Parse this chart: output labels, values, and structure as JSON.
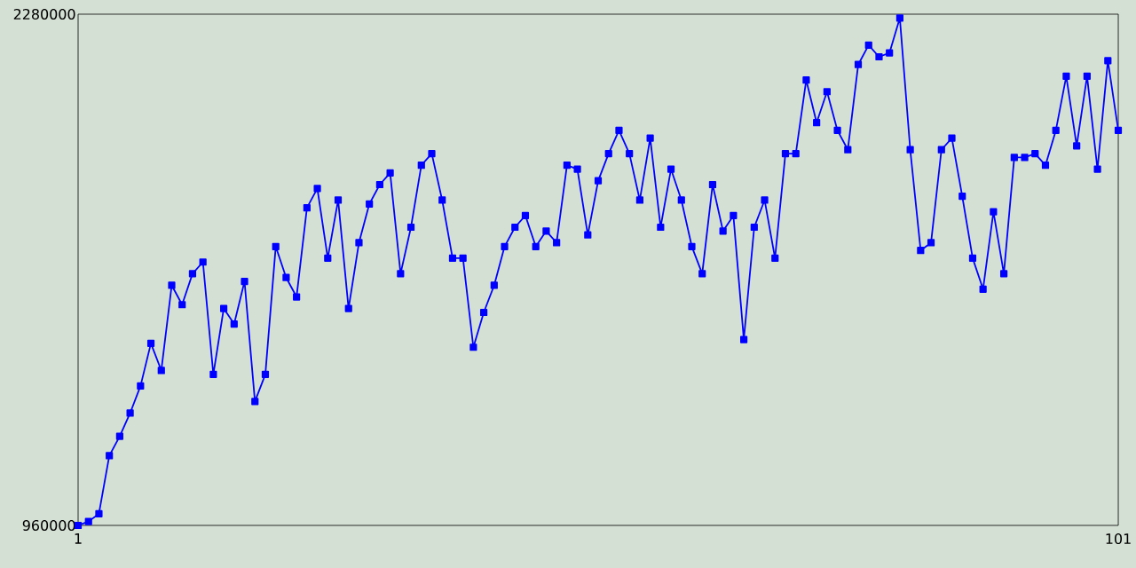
{
  "chart_data": {
    "type": "line",
    "x": [
      1,
      2,
      3,
      4,
      5,
      6,
      7,
      8,
      9,
      10,
      11,
      12,
      13,
      14,
      15,
      16,
      17,
      18,
      19,
      20,
      21,
      22,
      23,
      24,
      25,
      26,
      27,
      28,
      29,
      30,
      31,
      32,
      33,
      34,
      35,
      36,
      37,
      38,
      39,
      40,
      41,
      42,
      43,
      44,
      45,
      46,
      47,
      48,
      49,
      50,
      51,
      52,
      53,
      54,
      55,
      56,
      57,
      58,
      59,
      60,
      61,
      62,
      63,
      64,
      65,
      66,
      67,
      68,
      69,
      70,
      71,
      72,
      73,
      74,
      75,
      76,
      77,
      78,
      79,
      80,
      81,
      82,
      83,
      84,
      85,
      86,
      87,
      88,
      89,
      90,
      91,
      92,
      93,
      94,
      95,
      96,
      97,
      98,
      99,
      100,
      101
    ],
    "series": [
      {
        "color": "#0000ff",
        "values": [
          960000,
          970000,
          990000,
          1140000,
          1190000,
          1250000,
          1320000,
          1430000,
          1360000,
          1580000,
          1530000,
          1610000,
          1640000,
          1350000,
          1520000,
          1480000,
          1590000,
          1280000,
          1350000,
          1680000,
          1600000,
          1550000,
          1780000,
          1830000,
          1650000,
          1800000,
          1520000,
          1690000,
          1790000,
          1840000,
          1870000,
          1610000,
          1730000,
          1890000,
          1920000,
          1800000,
          1650000,
          1650000,
          1420000,
          1510000,
          1580000,
          1680000,
          1730000,
          1760000,
          1680000,
          1720000,
          1690000,
          1890000,
          1880000,
          1710000,
          1850000,
          1920000,
          1980000,
          1920000,
          1800000,
          1960000,
          1730000,
          1880000,
          1800000,
          1680000,
          1610000,
          1840000,
          1720000,
          1760000,
          1440000,
          1730000,
          1800000,
          1650000,
          1920000,
          1920000,
          2110000,
          2000000,
          2080000,
          1980000,
          1930000,
          2150000,
          2200000,
          2170000,
          2180000,
          2270000,
          1930000,
          1670000,
          1690000,
          1930000,
          1960000,
          1810000,
          1650000,
          1570000,
          1770000,
          1610000,
          1910000,
          1910000,
          1920000,
          1890000,
          1980000,
          2120000,
          1940000,
          2120000,
          1880000,
          2160000,
          1980000
        ]
      }
    ],
    "xlim": [
      1,
      101
    ],
    "xticks": [
      1,
      101
    ],
    "ylim": [
      960000,
      2280000
    ],
    "yticks": [
      960000,
      2280000
    ],
    "marker": "square",
    "line_style": "solid"
  }
}
